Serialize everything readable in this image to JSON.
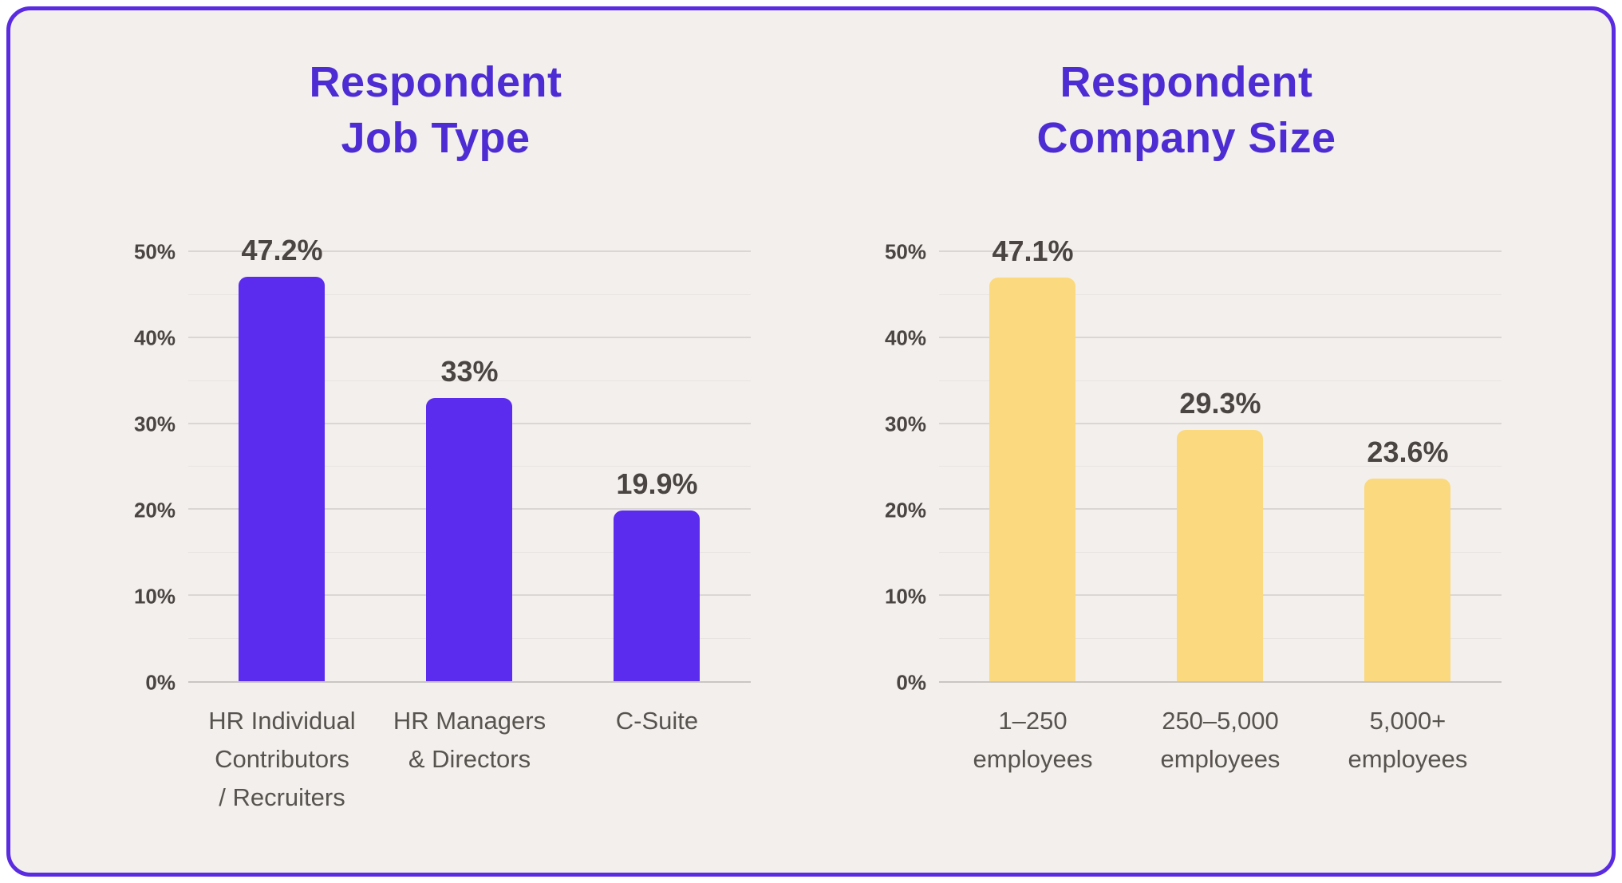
{
  "theme": {
    "page-bg": "#FFFFFF",
    "panel-bg": "#F3EFEC",
    "border": "#5A2BE0",
    "title": "#4E2CD3",
    "text-strong": "#4A4542",
    "text-muted": "#57534F",
    "grid-major": "#DAD6D3",
    "grid-minor": "#E8E4E1",
    "baseline": "#C9C5C2"
  },
  "chart_data": [
    {
      "type": "bar",
      "title": "Respondent\nJob Type",
      "categories": [
        "HR Individual\nContributors\n/ Recruiters",
        "HR Managers\n& Directors",
        "C-Suite"
      ],
      "values": [
        47.2,
        33,
        19.9
      ],
      "value_labels": [
        "47.2%",
        "33%",
        "19.9%"
      ],
      "bar_color": "#5B2BEE",
      "xlabel": "",
      "ylabel": "",
      "ylim": [
        0,
        50
      ],
      "ytick_step_major": 10,
      "ytick_step_minor": 5,
      "ytick_labels": [
        "0%",
        "10%",
        "20%",
        "30%",
        "40%",
        "50%"
      ],
      "grid": "horizontal",
      "legend": "none"
    },
    {
      "type": "bar",
      "title": "Respondent\nCompany Size",
      "categories": [
        "1–250\nemployees",
        "250–5,000\nemployees",
        "5,000+\nemployees"
      ],
      "values": [
        47.1,
        29.3,
        23.6
      ],
      "value_labels": [
        "47.1%",
        "29.3%",
        "23.6%"
      ],
      "bar_color": "#FBD97E",
      "xlabel": "",
      "ylabel": "",
      "ylim": [
        0,
        50
      ],
      "ytick_step_major": 10,
      "ytick_step_minor": 5,
      "ytick_labels": [
        "0%",
        "10%",
        "20%",
        "30%",
        "40%",
        "50%"
      ],
      "grid": "horizontal",
      "legend": "none"
    }
  ]
}
